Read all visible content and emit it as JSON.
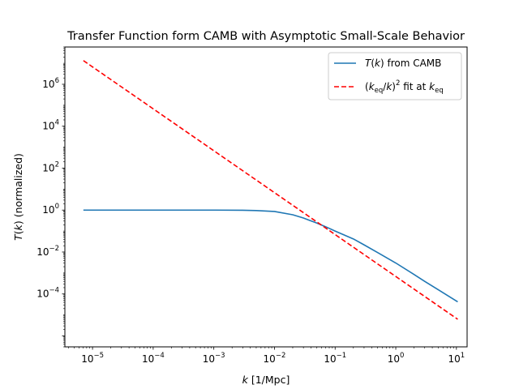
{
  "chart_data": {
    "type": "line",
    "title": "Transfer Function  form CAMB with Asymptotic Small-Scale Behavior",
    "xlabel": "k [1/Mpc]",
    "ylabel": "T(k) (normalized)",
    "xscale": "log",
    "yscale": "log",
    "xlim": [
      3.5e-06,
      15
    ],
    "ylim": [
      3e-07,
      60000000
    ],
    "grid": false,
    "legend_position": "top-right",
    "x_tick_labels": [
      "10^-5",
      "10^-4",
      "10^-3",
      "10^-2",
      "10^-1",
      "10^0",
      "10^1"
    ],
    "y_tick_labels": [
      "10^-4",
      "10^-2",
      "10^0",
      "10^2",
      "10^4",
      "10^6"
    ],
    "series": [
      {
        "name": "T(k) from CAMB",
        "color": "#1f77b4",
        "style": "solid",
        "x": [
          7.07e-06,
          1e-05,
          0.0001,
          0.001,
          0.003,
          0.005,
          0.01,
          0.02,
          0.03,
          0.05,
          0.07,
          0.1,
          0.2,
          0.3,
          0.5,
          1,
          2,
          3,
          5,
          10.5
        ],
        "y": [
          1.0,
          1.0,
          1.0,
          0.998,
          0.98,
          0.95,
          0.86,
          0.6,
          0.42,
          0.24,
          0.16,
          0.1,
          0.042,
          0.022,
          0.0095,
          0.003,
          0.00085,
          0.0004,
          0.00016,
          4.2e-05
        ]
      },
      {
        "name": "(k_eq/k)^2 fit at k_eq",
        "color": "#ff0000",
        "style": "dashed",
        "x": [
          7.07e-06,
          10.5
        ],
        "y": [
          13500000,
          6.2e-06
        ]
      }
    ]
  }
}
